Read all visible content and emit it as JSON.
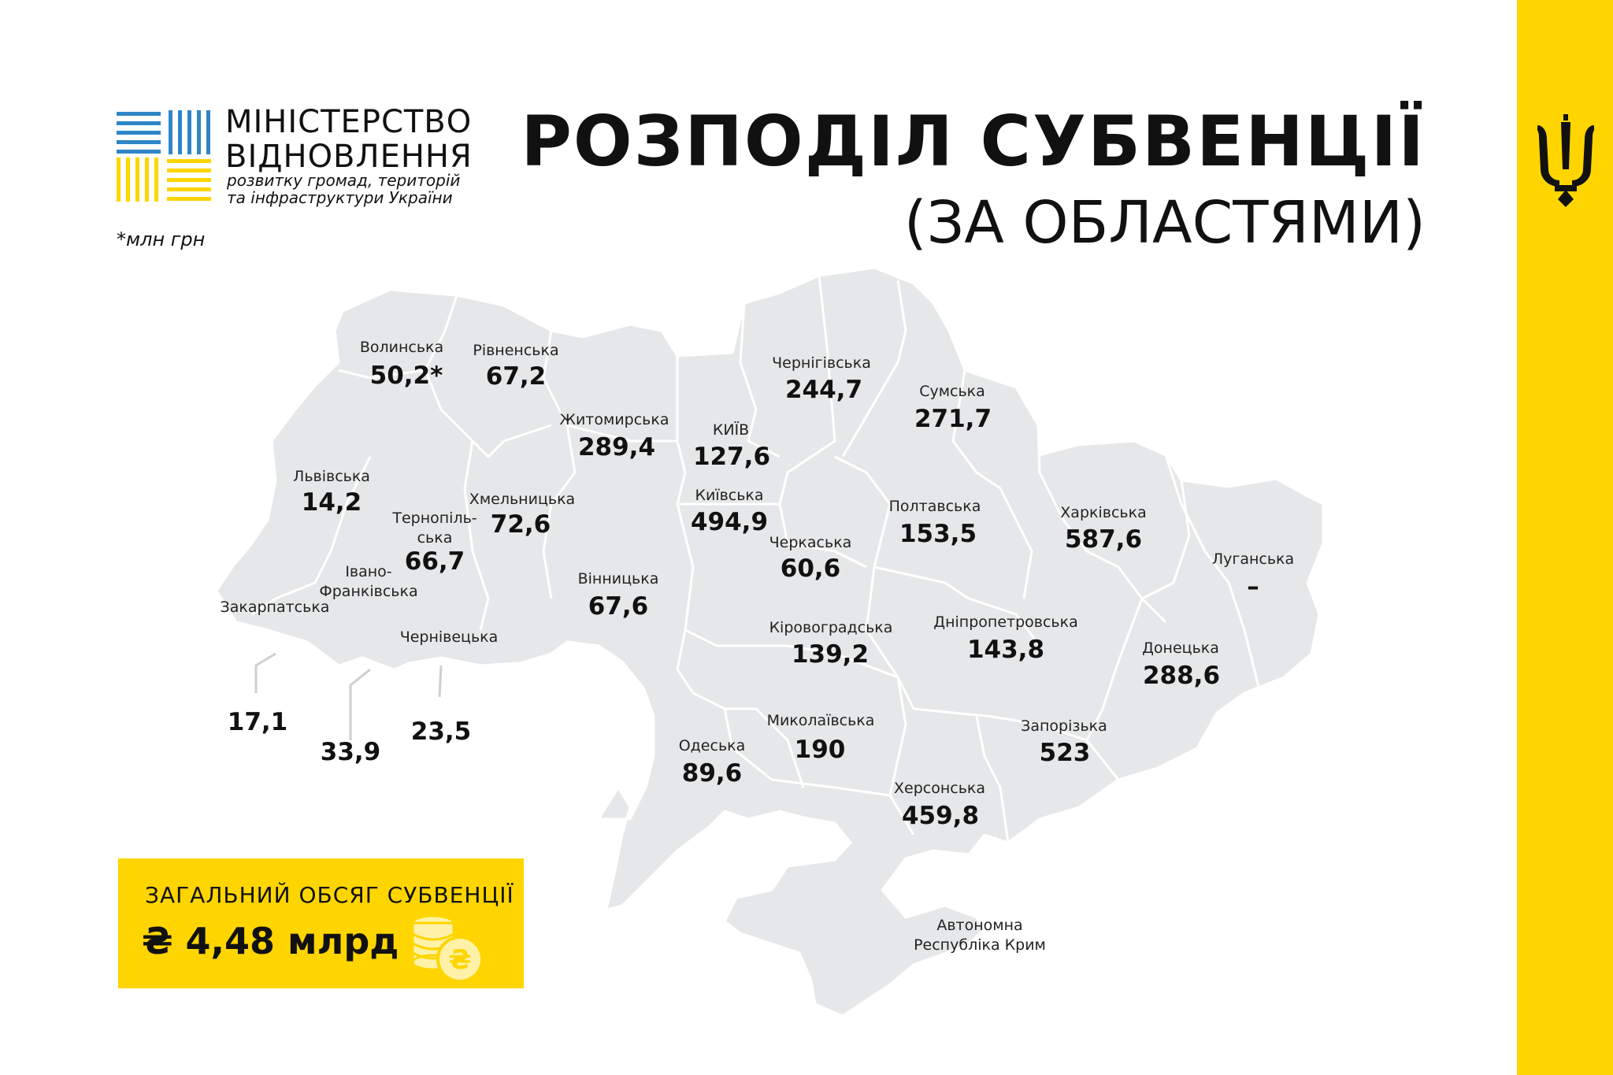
{
  "header": {
    "ministry_line1": "МІНІСТЕРСТВО",
    "ministry_line2": "ВІДНОВЛЕННЯ",
    "ministry_line3": "розвитку громад, територій",
    "ministry_line4": "та інфраструктури України",
    "unit_note": "*млн грн",
    "title": "РОЗПОДІЛ СУБВЕНЦІЇ",
    "subtitle": "(ЗА ОБЛАСТЯМИ)"
  },
  "colors": {
    "accent_yellow": "#FFD500",
    "logo_blue": "#2E86C8",
    "map_fill": "#E6E7E8",
    "map_border": "#FFFFFF"
  },
  "icons": {
    "emblem": "trident-icon",
    "logo": "ministry-logo-icon",
    "coins": "coins-icon"
  },
  "regions": [
    {
      "name": "Волинська",
      "value": "50,2*"
    },
    {
      "name": "Рівненська",
      "value": "67,2"
    },
    {
      "name": "Житомирська",
      "value": "289,4"
    },
    {
      "name": "КИЇВ",
      "value": "127,6"
    },
    {
      "name": "Київська",
      "value": "494,9"
    },
    {
      "name": "Чернігівська",
      "value": "244,7"
    },
    {
      "name": "Сумська",
      "value": "271,7"
    },
    {
      "name": "Львівська",
      "value": "14,2"
    },
    {
      "name_line1": "Тернопіль-",
      "name_line2": "ська",
      "value": "66,7"
    },
    {
      "name": "Хмельницька",
      "value": "72,6"
    },
    {
      "name": "Полтавська",
      "value": "153,5"
    },
    {
      "name": "Харківська",
      "value": "587,6"
    },
    {
      "name": "Черкаська",
      "value": "60,6"
    },
    {
      "name": "Луганська",
      "value": "–"
    },
    {
      "name_line1": "Івано-",
      "name_line2": "Франківська",
      "value": "33,9"
    },
    {
      "name": "Закарпатська",
      "value": "17,1"
    },
    {
      "name": "Вінницька",
      "value": "67,6"
    },
    {
      "name": "Чернівецька",
      "value": "23,5"
    },
    {
      "name": "Кіровоградська",
      "value": "139,2"
    },
    {
      "name": "Дніпропетровська",
      "value": "143,8"
    },
    {
      "name": "Донецька",
      "value": "288,6"
    },
    {
      "name": "Миколаївська",
      "value": "190"
    },
    {
      "name": "Одеська",
      "value": "89,6"
    },
    {
      "name": "Запорізька",
      "value": "523"
    },
    {
      "name": "Херсонська",
      "value": "459,8"
    },
    {
      "name_line1": "Автономна",
      "name_line2": "Республіка Крим"
    }
  ],
  "total": {
    "label": "ЗАГАЛЬНИЙ ОБСЯГ СУБВЕНЦІЇ",
    "value": "₴ 4,48 млрд"
  }
}
